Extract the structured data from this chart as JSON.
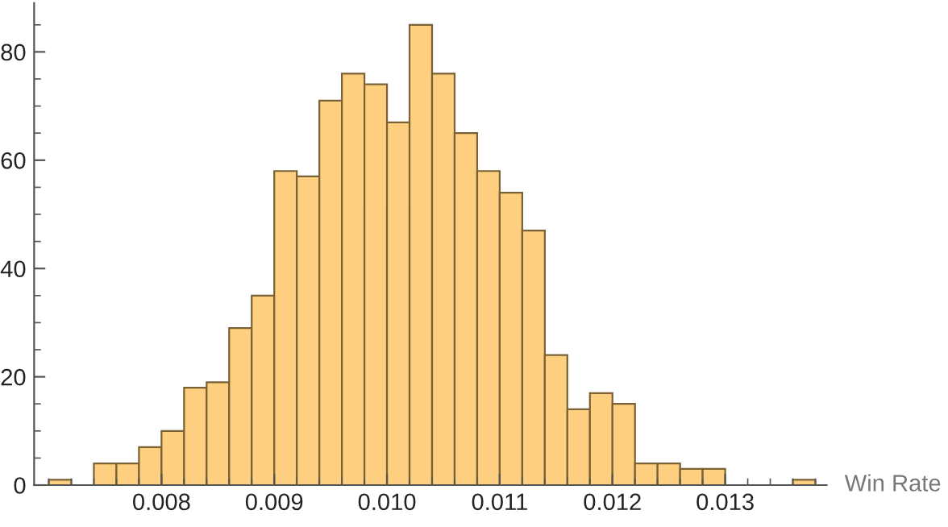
{
  "chart_data": {
    "type": "histogram",
    "xlabel": "Win Rate",
    "bins": [
      0.007,
      0.0072,
      0.0074,
      0.0076,
      0.0078,
      0.008,
      0.0082,
      0.0084,
      0.0086,
      0.0088,
      0.009,
      0.0092,
      0.0094,
      0.0096,
      0.0098,
      0.01,
      0.0102,
      0.0104,
      0.0106,
      0.0108,
      0.011,
      0.0112,
      0.0114,
      0.0116,
      0.0118,
      0.012,
      0.0122,
      0.0124,
      0.0126,
      0.0128,
      0.013,
      0.0132,
      0.0134,
      0.0136,
      0.0138
    ],
    "values": [
      1,
      0,
      4,
      4,
      7,
      10,
      18,
      19,
      29,
      35,
      58,
      57,
      71,
      76,
      74,
      67,
      85,
      76,
      65,
      58,
      54,
      47,
      24,
      14,
      17,
      15,
      4,
      4,
      3,
      3,
      0,
      0,
      0,
      1
    ],
    "color": "#fdcf7f",
    "xlim": [
      0.00687,
      0.0139
    ],
    "xticks": [
      {
        "value": 0.008,
        "label": "0.008"
      },
      {
        "value": 0.009,
        "label": "0.009"
      },
      {
        "value": 0.01,
        "label": "0.010"
      },
      {
        "value": 0.011,
        "label": "0.011"
      },
      {
        "value": 0.012,
        "label": "0.012"
      },
      {
        "value": 0.013,
        "label": "0.013"
      }
    ],
    "ylim": [
      0,
      89
    ],
    "yticks": [
      0,
      20,
      40,
      60,
      80
    ],
    "grid": false,
    "legend": false
  }
}
